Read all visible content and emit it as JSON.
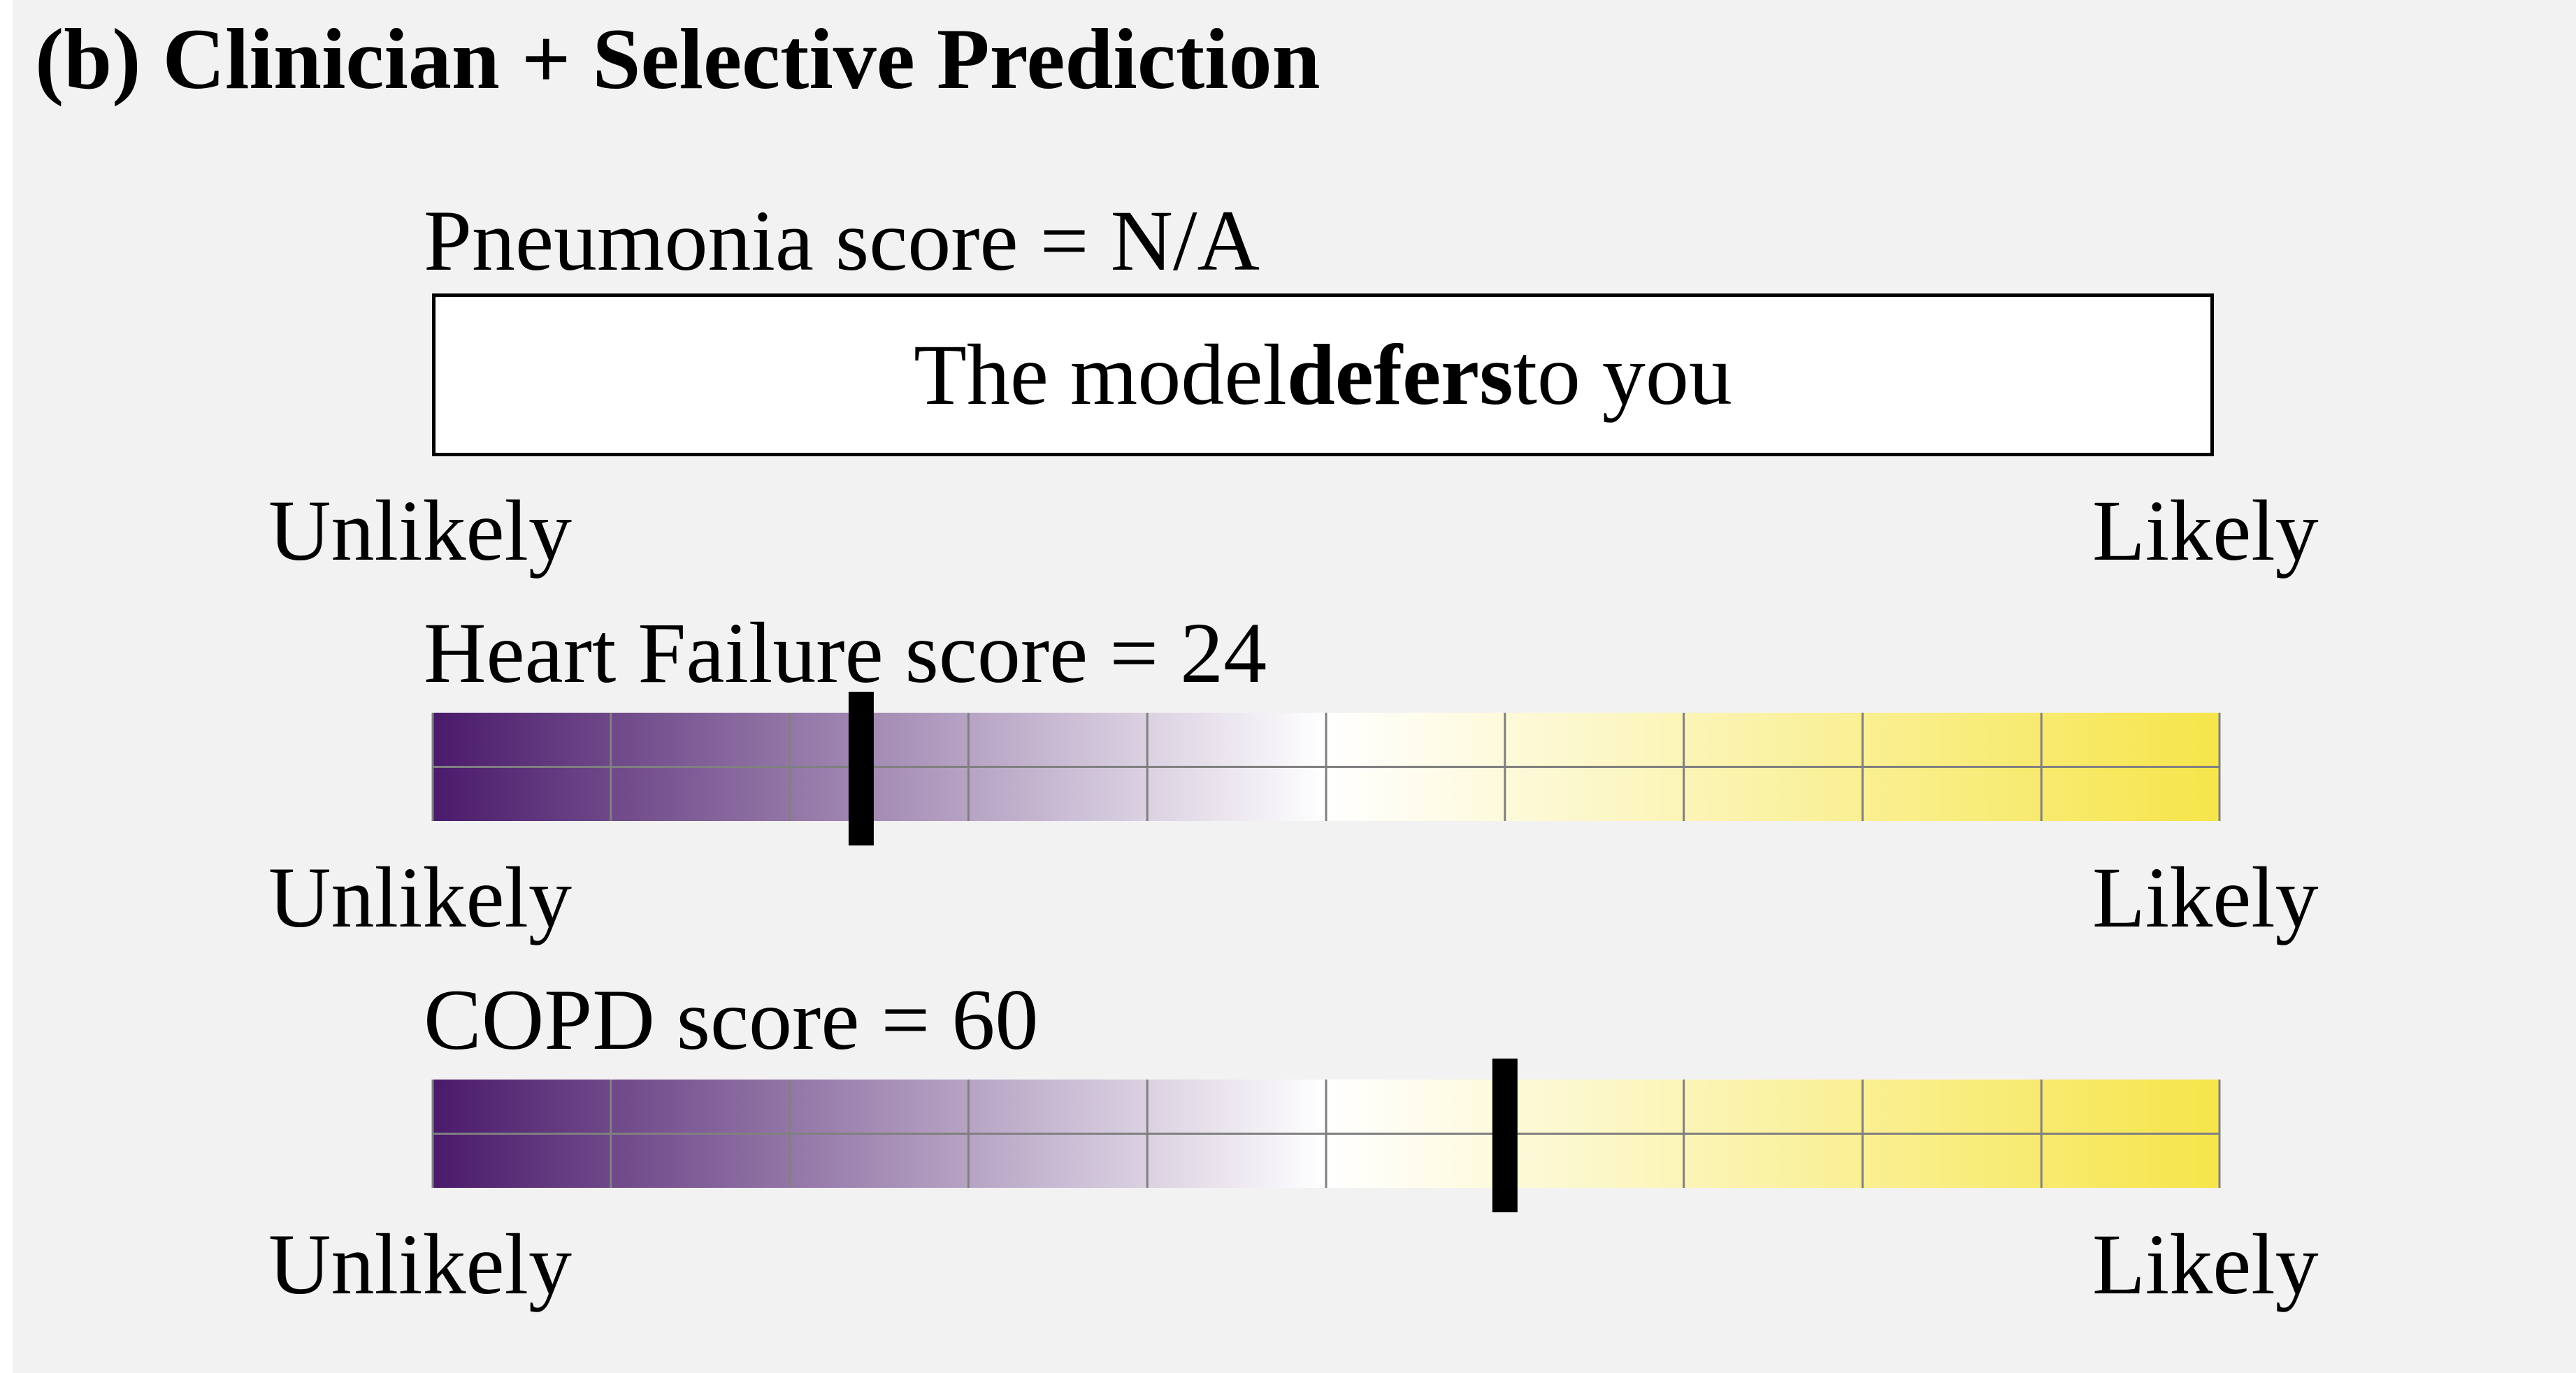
{
  "title": "(b) Clinician + Selective Prediction",
  "pneumonia": {
    "label": "Pneumonia score = N/A",
    "defer_prefix": "The model ",
    "defer_bold": "defers",
    "defer_suffix": " to you",
    "low_label": "Unlikely",
    "high_label": "Likely"
  },
  "heart_failure": {
    "label": "Heart Failure score = 24",
    "score": 24,
    "low_label": "Unlikely",
    "high_label": "Likely"
  },
  "copd": {
    "label": "COPD score = 60",
    "score": 60,
    "low_label": "Unlikely",
    "high_label": "Likely"
  },
  "colors": {
    "low": "#4a1a6b",
    "mid": "#ffffff",
    "high": "#f6e54a",
    "grid": "#808080",
    "marker": "#000000",
    "panel_bg": "#f2f2f2"
  }
}
